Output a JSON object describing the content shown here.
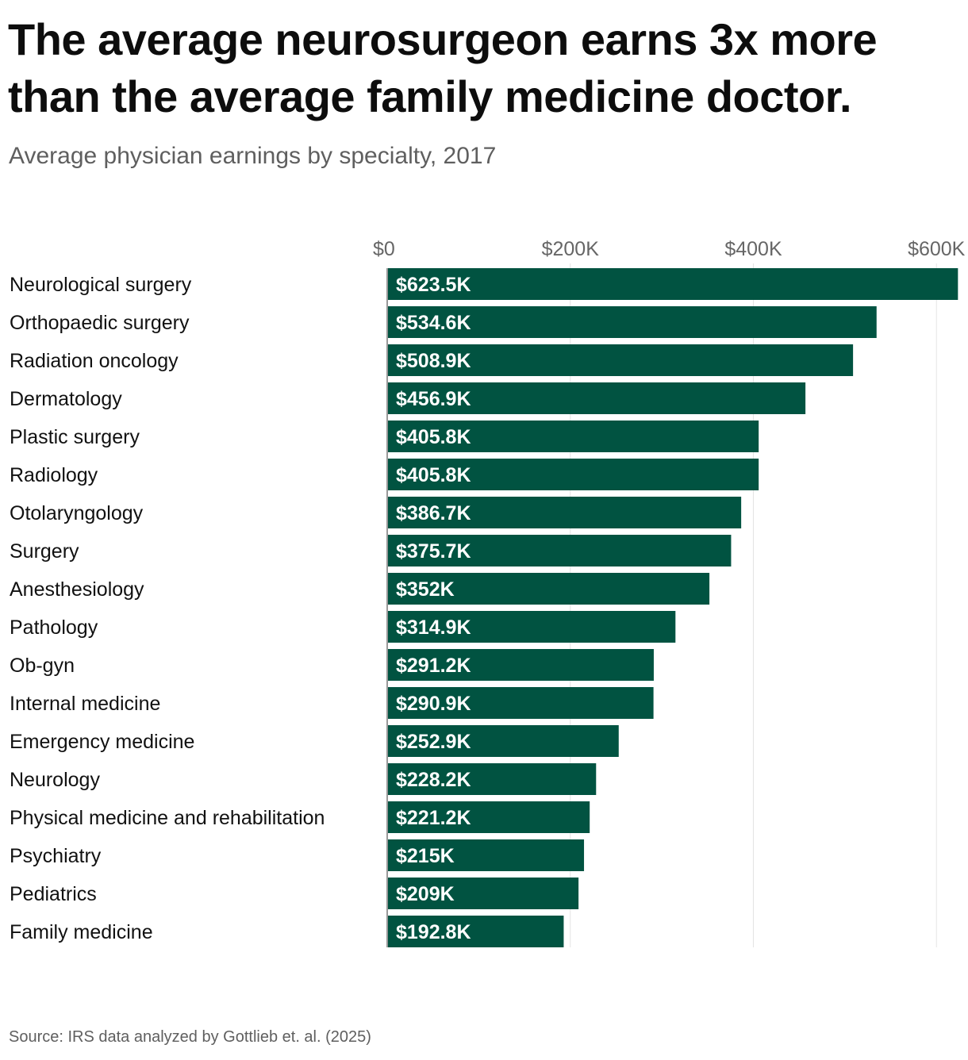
{
  "header": {
    "title": "The average neurosurgeon earns 3x more than the average family medicine doctor.",
    "subtitle": "Average physician earnings by specialty, 2017"
  },
  "footer": {
    "source": "Source: IRS data analyzed by Gottlieb et. al. (2025)"
  },
  "colors": {
    "bar": "#015341",
    "grid": "#e4e4e4",
    "axis": "#999999"
  },
  "chart_data": {
    "type": "bar",
    "orientation": "horizontal",
    "title": "The average neurosurgeon earns 3x more than the average family medicine doctor.",
    "subtitle": "Average physician earnings by specialty, 2017",
    "xlabel": "",
    "ylabel": "",
    "unit": "thousand USD",
    "xlim": [
      0,
      625
    ],
    "ticks": [
      0,
      200,
      400,
      600
    ],
    "tick_labels": [
      "$0",
      "$200K",
      "$400K",
      "$600K"
    ],
    "grid": true,
    "categories": [
      "Neurological surgery",
      "Orthopaedic surgery",
      "Radiation oncology",
      "Dermatology",
      "Plastic surgery",
      "Radiology",
      "Otolaryngology",
      "Surgery",
      "Anesthesiology",
      "Pathology",
      "Ob-gyn",
      "Internal medicine",
      "Emergency medicine",
      "Neurology",
      "Physical medicine and rehabilitation",
      "Psychiatry",
      "Pediatrics",
      "Family medicine"
    ],
    "values": [
      623.5,
      534.6,
      508.9,
      456.9,
      405.8,
      405.8,
      386.7,
      375.7,
      352,
      314.9,
      291.2,
      290.9,
      252.9,
      228.2,
      221.2,
      215,
      209,
      192.8
    ],
    "value_labels": [
      "$623.5K",
      "$534.6K",
      "$508.9K",
      "$456.9K",
      "$405.8K",
      "$405.8K",
      "$386.7K",
      "$375.7K",
      "$352K",
      "$314.9K",
      "$291.2K",
      "$290.9K",
      "$252.9K",
      "$228.2K",
      "$221.2K",
      "$215K",
      "$209K",
      "$192.8K"
    ]
  }
}
